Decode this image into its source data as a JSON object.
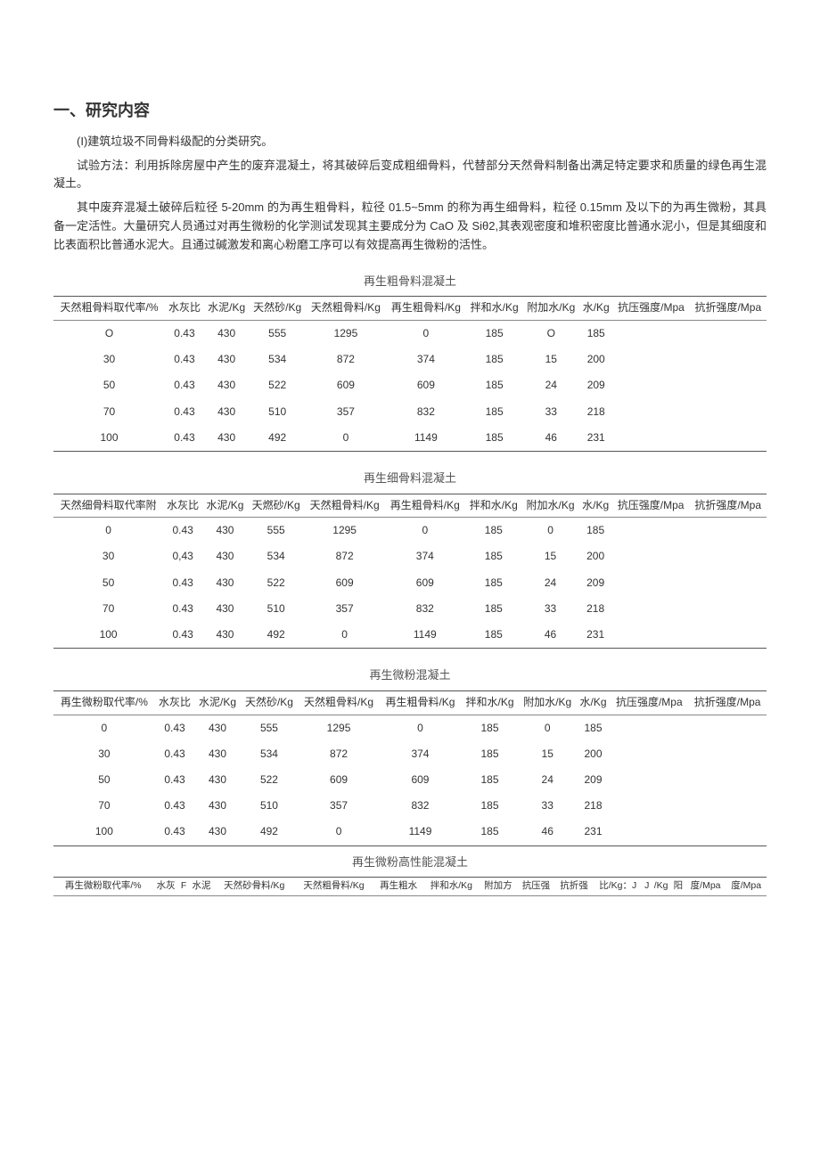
{
  "heading": "一、研究内容",
  "paragraphs": {
    "p1": "(I)建筑垃圾不同骨料级配的分类研究。",
    "p2": "试验方法：利用拆除房屋中产生的废弃混凝土，将其破碎后变成粗细骨料，代替部分天然骨料制备出满足特定要求和质量的绿色再生混凝土。",
    "p3": "其中废弃混凝土破碎后粒径 5-20mm 的为再生粗骨料，粒径 01.5~5mm 的称为再生细骨料，粒径 0.15mm 及以下的为再生微粉，其具备一定活性。大量研究人员通过对再生微粉的化学测试发现其主要成分为 CaO 及 Siθ2,其表观密度和堆积密度比普通水泥小，但是其细度和比表面积比普通水泥大。且通过碱激发和离心粉磨工序可以有效提高再生微粉的活性。"
  },
  "table1": {
    "caption": "再生粗骨料混凝土",
    "headers": [
      "天然粗骨料取代率/%",
      "水灰比",
      "水泥/Kg",
      "天然砂/Kg",
      "天然粗骨料/Kg",
      "再生粗骨料/Kg",
      "拌和水/Kg",
      "附加水/Kg",
      "水/Kg",
      "抗压强度/Mpa",
      "抗折强度/Mpa"
    ],
    "rows": [
      [
        "O",
        "0.43",
        "430",
        "555",
        "1295",
        "0",
        "185",
        "O",
        "185",
        "",
        ""
      ],
      [
        "30",
        "0.43",
        "430",
        "534",
        "872",
        "374",
        "185",
        "15",
        "200",
        "",
        ""
      ],
      [
        "50",
        "0.43",
        "430",
        "522",
        "609",
        "609",
        "185",
        "24",
        "209",
        "",
        ""
      ],
      [
        "70",
        "0.43",
        "430",
        "510",
        "357",
        "832",
        "185",
        "33",
        "218",
        "",
        ""
      ],
      [
        "100",
        "0.43",
        "430",
        "492",
        "0",
        "1149",
        "185",
        "46",
        "231",
        "",
        ""
      ]
    ]
  },
  "table2": {
    "caption": "再生细骨料混凝土",
    "headers": [
      "天然细骨料取代率附",
      "水灰比",
      "水泥/Kg",
      "天燃砂/Kg",
      "天然粗骨料/Kg",
      "再生粗骨料/Kg",
      "拌和水/Kg",
      "附加水/Kg",
      "水/Kg",
      "抗压强度/Mpa",
      "抗折强度/Mpa"
    ],
    "rows": [
      [
        "0",
        "0.43",
        "430",
        "555",
        "1295",
        "0",
        "185",
        "0",
        "185",
        "",
        ""
      ],
      [
        "30",
        "0,43",
        "430",
        "534",
        "872",
        "374",
        "185",
        "15",
        "200",
        "",
        ""
      ],
      [
        "50",
        "0.43",
        "430",
        "522",
        "609",
        "609",
        "185",
        "24",
        "209",
        "",
        ""
      ],
      [
        "70",
        "0.43",
        "430",
        "510",
        "357",
        "832",
        "185",
        "33",
        "218",
        "",
        ""
      ],
      [
        "100",
        "0.43",
        "430",
        "492",
        "0",
        "1149",
        "185",
        "46",
        "231",
        "",
        ""
      ]
    ]
  },
  "table3": {
    "caption": "再生微粉混凝土",
    "headers": [
      "再生微粉取代率/%",
      "水灰比",
      "水泥/Kg",
      "天然砂/Kg",
      "天然粗骨料/Kg",
      "再生粗骨料/Kg",
      "拌和水/Kg",
      "附加水/Kg",
      "水/Kg",
      "抗压强度/Mpa",
      "抗折强度/Mpa"
    ],
    "rows": [
      [
        "0",
        "0.43",
        "430",
        "555",
        "1295",
        "0",
        "185",
        "0",
        "185",
        "",
        ""
      ],
      [
        "30",
        "0.43",
        "430",
        "534",
        "872",
        "374",
        "185",
        "15",
        "200",
        "",
        ""
      ],
      [
        "50",
        "0.43",
        "430",
        "522",
        "609",
        "609",
        "185",
        "24",
        "209",
        "",
        ""
      ],
      [
        "70",
        "0.43",
        "430",
        "510",
        "357",
        "832",
        "185",
        "33",
        "218",
        "",
        ""
      ],
      [
        "100",
        "0.43",
        "430",
        "492",
        "0",
        "1149",
        "185",
        "46",
        "231",
        "",
        ""
      ]
    ]
  },
  "table4": {
    "caption": "再生微粉高性能混凝土",
    "headers": [
      "再生微粉取代率/%",
      "水灰",
      "F",
      "水泥",
      "天然砂骨料/Kg",
      "天然粗骨料/Kg",
      "再生粗水",
      "拌和水/Kg",
      "附加方",
      "抗压强",
      "抗折强",
      "比/Kg：J",
      "J",
      "/Kg",
      "阳",
      "度/Mpa",
      "度/Mpa"
    ]
  }
}
